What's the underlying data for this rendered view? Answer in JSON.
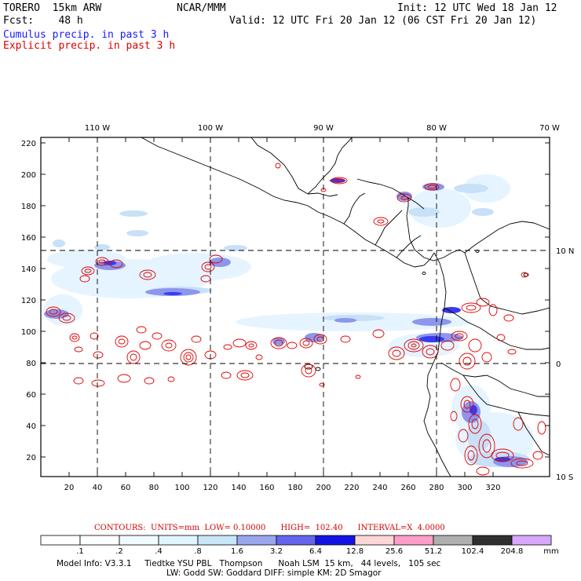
{
  "header": {
    "model": "TORERO  15km ARW",
    "center": "NCAR/MMM",
    "init": "Init: 12 UTC Wed 18 Jan 12",
    "fcst": "Fcst:    48 h",
    "valid": "Valid: 12 UTC Fri 20 Jan 12 (06 CST Fri 20 Jan 12)",
    "legend_cumulus": "Cumulus precip. in past 3 h",
    "legend_explicit": "Explicit precip. in past 3 h"
  },
  "colors": {
    "cumulus": "#1a1aff",
    "explicit": "#e00000"
  },
  "grid": {
    "top_lon_labels": [
      "110 W",
      "100 W",
      "90 W",
      "80 W",
      "70 W"
    ],
    "right_lat_labels": [
      "10 N",
      "0",
      "10 S"
    ],
    "left_ticks": [
      "220",
      "200",
      "180",
      "160",
      "140",
      "120",
      "100",
      "80",
      "60",
      "40",
      "20"
    ],
    "bottom_ticks": [
      "20",
      "40",
      "60",
      "80",
      "100",
      "120",
      "140",
      "160",
      "180",
      "200",
      "220",
      "240",
      "260",
      "280",
      "300",
      "320"
    ]
  },
  "contour_note": "CONTOURS:  UNITS=mm  LOW= 0.10000      HIGH=  102.40      INTERVAL=X  4.0000",
  "colorbar": {
    "labels": [
      ".1",
      ".2",
      ".4",
      ".8",
      "1.6",
      "3.2",
      "6.4",
      "12.8",
      "25.6",
      "51.2",
      "102.4",
      "204.8"
    ],
    "unit": "mm",
    "colors": [
      "#ffffff",
      "#ffffff",
      "#f0fbff",
      "#e0f5ff",
      "#c8e6f8",
      "#9aa6ee",
      "#6464ec",
      "#1414e6",
      "#ffd6d6",
      "#ff9ec8",
      "#b0b0b0",
      "#303030",
      "#d8a8ff"
    ]
  },
  "footer": {
    "line1": "Model Info: V3.3.1     Tiedtke YSU PBL   Thompson      Noah LSM  15 km,   44 levels,   105 sec",
    "line2": "LW: Godd SW: Goddard DIFF: simple KM: 2D Smagor"
  }
}
